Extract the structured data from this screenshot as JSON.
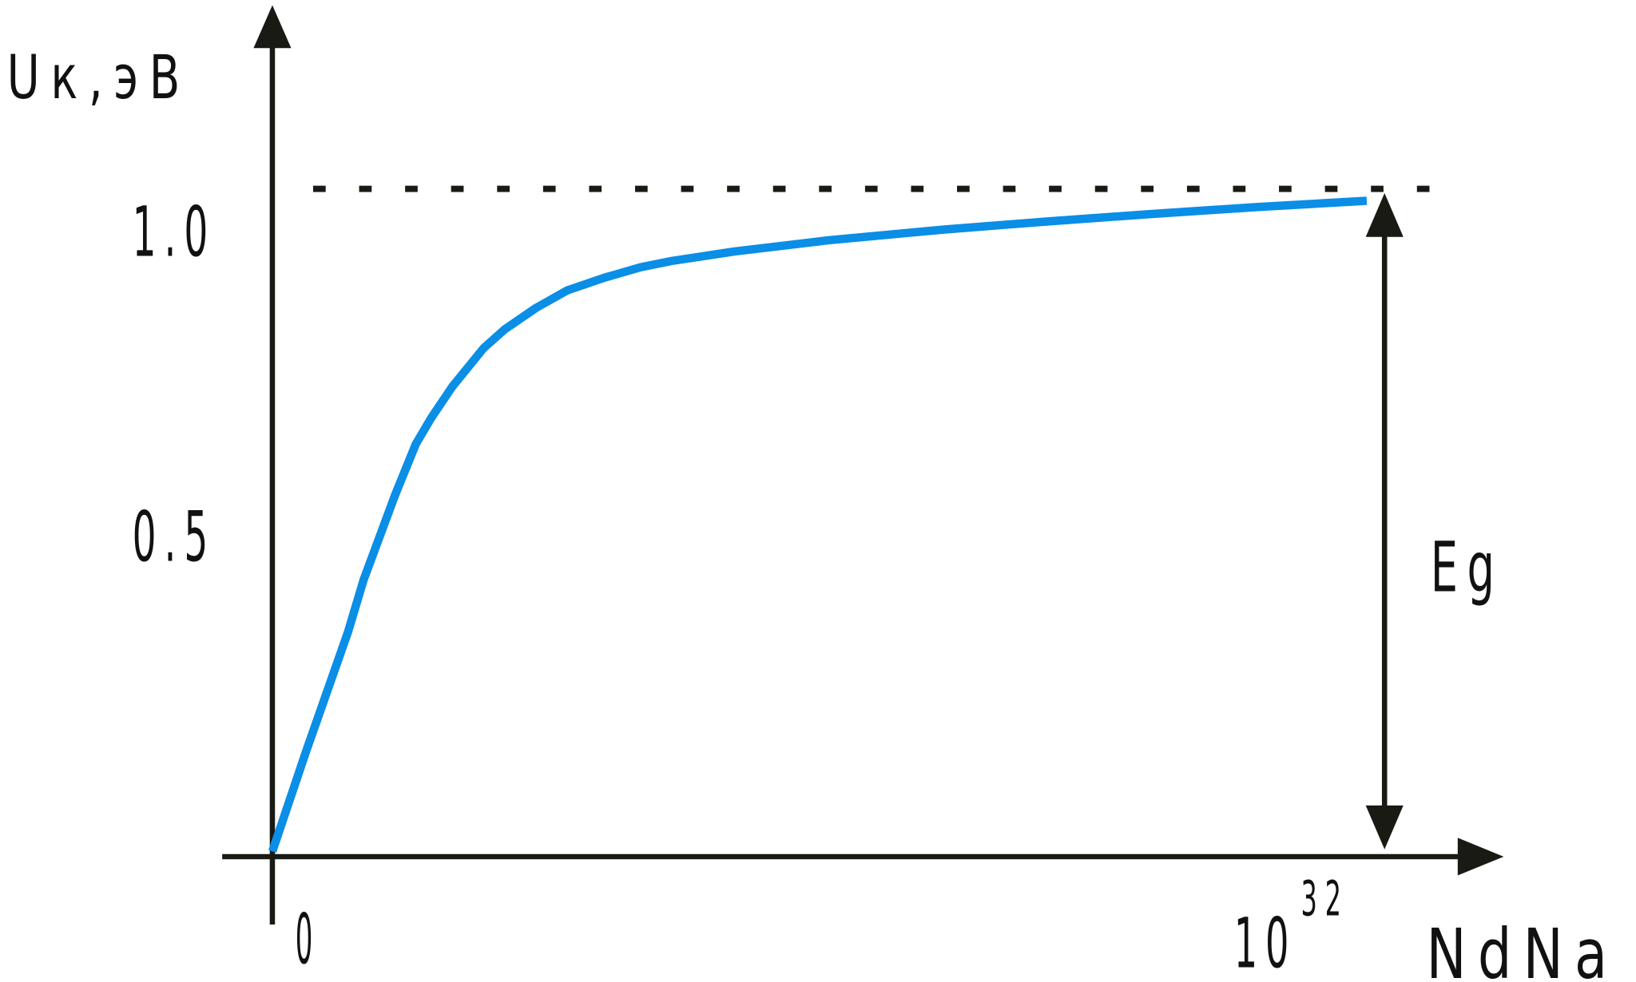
{
  "chart_data": {
    "type": "line",
    "title": "",
    "ylabel": "Uк,эВ",
    "xlabel": "NdNa",
    "yticks": [
      {
        "value": 1.0,
        "label": "1.0"
      },
      {
        "value": 0.5,
        "label": "0.5"
      }
    ],
    "xticks": [
      {
        "value": 0,
        "label": "0"
      },
      {
        "value": 1e+32,
        "label_base": "10",
        "label_exp": "32"
      }
    ],
    "xlim": [
      0,
      1e+32
    ],
    "ylim": [
      0,
      1.25
    ],
    "grid": false,
    "series": [
      {
        "color": "#0a8ee6",
        "x": [
          0,
          3e+30,
          6.8e+30,
          8.2e+30,
          1.1e+31,
          1.29e+31,
          1.43e+31,
          1.62e+31,
          1.9e+31,
          2.09e+31,
          2.37e+31,
          2.65e+31,
          2.98e+31,
          3.31e+31,
          3.59e+31,
          4.15e+31,
          5e+31,
          6.03e+31,
          6.97e+31,
          7.91e+31,
          8.85e+31,
          9.84e+31
        ],
        "y": [
          0,
          0.158,
          0.35,
          0.433,
          0.567,
          0.65,
          0.692,
          0.742,
          0.803,
          0.833,
          0.867,
          0.895,
          0.915,
          0.932,
          0.942,
          0.957,
          0.975,
          0.992,
          1.005,
          1.017,
          1.028,
          1.038
        ]
      }
    ],
    "annotations": {
      "eg_level": {
        "value": 1.057,
        "style": "dashed",
        "color": "#111111"
      },
      "eg_arrow": {
        "label": "Eg",
        "from": 0,
        "to": 1.057,
        "at_x": 1e+32
      }
    }
  }
}
